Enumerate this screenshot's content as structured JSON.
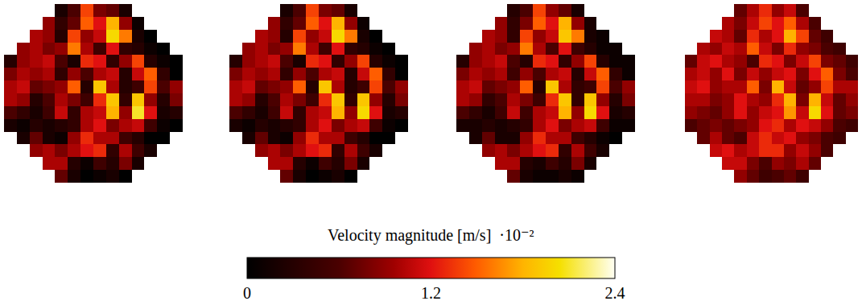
{
  "chart_data": {
    "type": "heatmap",
    "tick_labels": false,
    "panels": [
      {
        "cells": [
          [
            null,
            null,
            null,
            null,
            0.2,
            0.6,
            1.4,
            0.8,
            0.7,
            0.2,
            null,
            null,
            null,
            null
          ],
          [
            null,
            null,
            null,
            0.9,
            0.4,
            0.7,
            1.5,
            1.2,
            1.8,
            0.9,
            0.1,
            null,
            null,
            null
          ],
          [
            null,
            null,
            1.0,
            0.9,
            0.3,
            1.4,
            0.9,
            1.1,
            2.0,
            1.6,
            0.2,
            0.0,
            null,
            null
          ],
          [
            null,
            0.9,
            1.0,
            0.8,
            0.9,
            1.6,
            1.0,
            0.5,
            1.2,
            0.4,
            0.3,
            0.1,
            0.0,
            null
          ],
          [
            0.3,
            0.9,
            1.0,
            1.1,
            0.6,
            0.2,
            1.3,
            1.2,
            0.4,
            0.9,
            1.4,
            0.3,
            0.1,
            0.0
          ],
          [
            0.8,
            1.0,
            0.9,
            1.0,
            0.4,
            0.9,
            0.6,
            1.0,
            1.1,
            0.3,
            1.1,
            1.5,
            0.4,
            0.0
          ],
          [
            1.0,
            1.1,
            0.7,
            0.8,
            0.9,
            1.5,
            0.3,
            1.9,
            1.0,
            0.3,
            0.5,
            1.4,
            0.6,
            0.9
          ],
          [
            1.0,
            0.9,
            0.3,
            0.6,
            1.0,
            0.8,
            0.5,
            1.3,
            1.9,
            0.4,
            1.9,
            0.9,
            0.3,
            0.8
          ],
          [
            0.6,
            0.4,
            0.2,
            0.5,
            1.1,
            0.4,
            1.0,
            1.1,
            1.8,
            0.9,
            2.1,
            1.2,
            0.2,
            0.3
          ],
          [
            0.2,
            0.1,
            0.3,
            0.2,
            0.3,
            0.4,
            1.0,
            1.2,
            0.8,
            1.0,
            1.1,
            0.5,
            0.1,
            0.0
          ],
          [
            null,
            0.2,
            0.7,
            0.2,
            0.1,
            0.9,
            1.3,
            1.0,
            1.0,
            0.5,
            0.3,
            0.0,
            0.0,
            null
          ],
          [
            null,
            null,
            0.9,
            1.0,
            0.8,
            1.0,
            1.2,
            1.3,
            0.4,
            1.0,
            0.5,
            0.2,
            null,
            null
          ],
          [
            null,
            null,
            null,
            1.0,
            1.0,
            0.3,
            0.1,
            0.5,
            0.3,
            0.8,
            0.2,
            null,
            null,
            null
          ],
          [
            null,
            null,
            null,
            null,
            0.7,
            0.2,
            0.0,
            0.1,
            0.2,
            0.0,
            null,
            null,
            null,
            null
          ]
        ]
      },
      {
        "cells": [
          [
            null,
            null,
            null,
            null,
            0.2,
            0.6,
            1.4,
            0.8,
            0.7,
            0.2,
            null,
            null,
            null,
            null
          ],
          [
            null,
            null,
            null,
            0.9,
            0.4,
            0.7,
            1.5,
            1.2,
            1.8,
            0.9,
            0.1,
            null,
            null,
            null
          ],
          [
            null,
            null,
            1.0,
            0.9,
            0.3,
            1.4,
            0.9,
            1.1,
            2.0,
            1.6,
            0.2,
            0.0,
            null,
            null
          ],
          [
            null,
            0.9,
            1.0,
            0.8,
            0.9,
            1.6,
            1.0,
            0.5,
            1.2,
            0.4,
            0.3,
            0.1,
            0.0,
            null
          ],
          [
            0.3,
            0.9,
            1.0,
            1.1,
            0.6,
            0.2,
            1.3,
            1.2,
            0.4,
            0.9,
            1.4,
            0.3,
            0.1,
            0.0
          ],
          [
            0.8,
            1.0,
            0.9,
            1.0,
            0.4,
            0.9,
            0.6,
            1.0,
            1.1,
            0.3,
            1.1,
            1.5,
            0.4,
            0.0
          ],
          [
            1.0,
            1.1,
            0.7,
            0.8,
            0.9,
            1.5,
            0.3,
            1.9,
            1.0,
            0.3,
            0.5,
            1.4,
            0.6,
            0.9
          ],
          [
            1.0,
            0.9,
            0.3,
            0.6,
            1.0,
            0.8,
            0.5,
            1.3,
            1.9,
            0.4,
            1.9,
            0.9,
            0.3,
            0.8
          ],
          [
            0.6,
            0.4,
            0.2,
            0.5,
            1.1,
            0.4,
            1.0,
            1.1,
            1.8,
            0.9,
            2.0,
            1.2,
            0.2,
            0.3
          ],
          [
            0.2,
            0.1,
            0.3,
            0.2,
            0.3,
            0.4,
            1.0,
            1.2,
            0.8,
            1.0,
            1.1,
            0.5,
            0.1,
            0.0
          ],
          [
            null,
            0.2,
            0.7,
            0.2,
            0.1,
            0.9,
            1.3,
            1.0,
            1.0,
            0.5,
            0.3,
            0.0,
            0.0,
            null
          ],
          [
            null,
            null,
            0.9,
            1.0,
            0.8,
            1.0,
            1.2,
            1.3,
            0.4,
            1.0,
            0.5,
            0.2,
            null,
            null
          ],
          [
            null,
            null,
            null,
            1.0,
            1.0,
            0.3,
            0.1,
            0.5,
            0.3,
            0.8,
            0.2,
            null,
            null,
            null
          ],
          [
            null,
            null,
            null,
            null,
            0.7,
            0.2,
            0.0,
            0.1,
            0.2,
            0.0,
            null,
            null,
            null,
            null
          ]
        ]
      },
      {
        "cells": [
          [
            null,
            null,
            null,
            null,
            0.3,
            0.6,
            1.4,
            0.9,
            0.7,
            0.2,
            null,
            null,
            null,
            null
          ],
          [
            null,
            null,
            null,
            0.9,
            0.4,
            0.8,
            1.5,
            1.2,
            1.8,
            0.9,
            0.2,
            null,
            null,
            null
          ],
          [
            null,
            null,
            1.0,
            0.9,
            0.4,
            1.4,
            0.9,
            1.1,
            1.9,
            1.6,
            0.2,
            0.1,
            null,
            null
          ],
          [
            null,
            0.9,
            1.0,
            0.8,
            0.9,
            1.6,
            1.0,
            0.6,
            1.2,
            0.5,
            0.3,
            0.1,
            0.1,
            null
          ],
          [
            0.3,
            0.9,
            1.0,
            1.1,
            0.6,
            0.3,
            1.3,
            1.2,
            0.4,
            0.9,
            1.4,
            0.3,
            0.1,
            0.1
          ],
          [
            0.8,
            1.0,
            0.9,
            1.0,
            0.5,
            0.9,
            0.6,
            1.0,
            1.1,
            0.3,
            1.1,
            1.5,
            0.4,
            0.1
          ],
          [
            1.0,
            1.1,
            0.7,
            0.8,
            0.9,
            1.5,
            0.3,
            1.9,
            1.0,
            0.4,
            0.5,
            1.4,
            0.6,
            0.9
          ],
          [
            1.0,
            0.9,
            0.4,
            0.6,
            1.0,
            0.8,
            0.5,
            1.3,
            1.9,
            0.4,
            1.9,
            0.9,
            0.3,
            0.8
          ],
          [
            0.6,
            0.4,
            0.2,
            0.5,
            1.1,
            0.5,
            1.0,
            1.1,
            1.8,
            0.9,
            2.0,
            1.2,
            0.2,
            0.3
          ],
          [
            0.2,
            0.2,
            0.3,
            0.2,
            0.3,
            0.4,
            1.0,
            1.2,
            0.8,
            1.0,
            1.1,
            0.5,
            0.1,
            0.1
          ],
          [
            null,
            0.2,
            0.7,
            0.2,
            0.2,
            0.9,
            1.3,
            1.0,
            1.0,
            0.5,
            0.3,
            0.1,
            0.0,
            null
          ],
          [
            null,
            null,
            0.9,
            1.0,
            0.8,
            1.0,
            1.2,
            1.3,
            0.4,
            1.0,
            0.5,
            0.2,
            null,
            null
          ],
          [
            null,
            null,
            null,
            1.0,
            1.0,
            0.3,
            0.2,
            0.5,
            0.3,
            0.8,
            0.2,
            null,
            null,
            null
          ],
          [
            null,
            null,
            null,
            null,
            0.7,
            0.2,
            0.1,
            0.1,
            0.2,
            0.1,
            null,
            null,
            null,
            null
          ]
        ]
      },
      {
        "cells": [
          [
            null,
            null,
            null,
            null,
            0.7,
            1.0,
            1.3,
            0.9,
            1.1,
            0.6,
            null,
            null,
            null,
            null
          ],
          [
            null,
            null,
            null,
            1.0,
            0.8,
            1.1,
            1.4,
            1.2,
            1.5,
            1.0,
            0.6,
            null,
            null,
            null
          ],
          [
            null,
            null,
            1.1,
            1.0,
            0.7,
            1.3,
            1.0,
            1.2,
            1.8,
            1.4,
            0.7,
            0.5,
            null,
            null
          ],
          [
            null,
            1.0,
            0.9,
            1.1,
            1.0,
            1.5,
            1.1,
            0.8,
            1.3,
            0.9,
            0.8,
            0.6,
            0.5,
            null
          ],
          [
            0.7,
            1.1,
            1.2,
            1.0,
            0.9,
            0.6,
            1.3,
            1.2,
            0.8,
            1.1,
            1.4,
            0.8,
            0.7,
            0.5
          ],
          [
            1.0,
            1.1,
            0.9,
            1.2,
            0.8,
            1.1,
            0.9,
            1.1,
            1.2,
            0.8,
            1.2,
            1.5,
            0.8,
            0.6
          ],
          [
            1.1,
            1.2,
            0.9,
            1.0,
            1.0,
            1.5,
            0.8,
            1.8,
            1.1,
            0.7,
            0.9,
            1.4,
            1.0,
            1.0
          ],
          [
            1.0,
            1.0,
            0.8,
            0.9,
            1.2,
            1.0,
            0.9,
            1.3,
            1.8,
            0.8,
            1.8,
            1.1,
            0.7,
            0.9
          ],
          [
            0.9,
            0.8,
            0.7,
            0.9,
            1.2,
            0.9,
            1.1,
            1.2,
            1.7,
            1.1,
            2.0,
            1.2,
            0.7,
            0.8
          ],
          [
            0.6,
            0.7,
            0.8,
            0.7,
            0.8,
            0.9,
            1.2,
            1.3,
            1.0,
            1.2,
            1.1,
            0.9,
            0.6,
            0.5
          ],
          [
            null,
            0.7,
            1.0,
            0.7,
            0.6,
            1.1,
            1.3,
            1.1,
            1.2,
            0.9,
            0.8,
            0.6,
            0.5,
            null
          ],
          [
            null,
            null,
            1.1,
            1.2,
            1.0,
            1.1,
            1.3,
            1.3,
            0.9,
            1.1,
            0.9,
            0.6,
            null,
            null
          ],
          [
            null,
            null,
            null,
            1.1,
            1.1,
            0.8,
            0.6,
            0.9,
            0.8,
            1.0,
            0.7,
            null,
            null,
            null
          ],
          [
            null,
            null,
            null,
            null,
            0.9,
            0.7,
            0.5,
            0.6,
            0.7,
            0.5,
            null,
            null,
            null,
            null
          ]
        ]
      }
    ],
    "colorbar": {
      "title": "Velocity magnitude [m/s]  ·10⁻²",
      "range": [
        0,
        2.4
      ],
      "ticks": [
        0,
        1.2,
        2.4
      ]
    }
  }
}
